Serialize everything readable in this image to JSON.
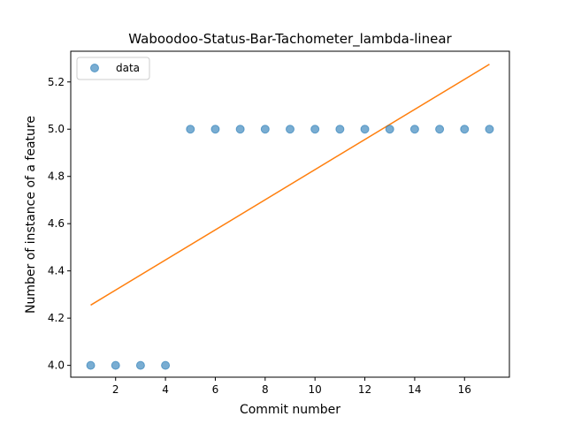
{
  "chart_data": {
    "type": "scatter",
    "title": "Waboodoo-Status-Bar-Tachometer_lambda-linear",
    "xlabel": "Commit number",
    "ylabel": "Number of instance of a feature",
    "xlim": [
      0.2,
      17.8
    ],
    "ylim": [
      3.95,
      5.33
    ],
    "xticks": [
      2,
      4,
      6,
      8,
      10,
      12,
      14,
      16
    ],
    "yticks": [
      4.0,
      4.2,
      4.4,
      4.6,
      4.8,
      5.0,
      5.2
    ],
    "xtick_labels": [
      "2",
      "4",
      "6",
      "8",
      "10",
      "12",
      "14",
      "16"
    ],
    "ytick_labels": [
      "4.0",
      "4.2",
      "4.4",
      "4.6",
      "4.8",
      "5.0",
      "5.2"
    ],
    "legend": {
      "position": "upper-left",
      "entries": [
        "data"
      ]
    },
    "grid": false,
    "series": [
      {
        "name": "data",
        "kind": "scatter",
        "color": "#1f77b4",
        "x": [
          1,
          2,
          3,
          4,
          5,
          6,
          7,
          8,
          9,
          10,
          11,
          12,
          13,
          14,
          15,
          16,
          17
        ],
        "y": [
          4,
          4,
          4,
          4,
          5,
          5,
          5,
          5,
          5,
          5,
          5,
          5,
          5,
          5,
          5,
          5,
          5
        ]
      },
      {
        "kind": "line",
        "color": "#ff7f0e",
        "x": [
          1,
          17
        ],
        "y": [
          4.255,
          5.275
        ]
      }
    ]
  }
}
